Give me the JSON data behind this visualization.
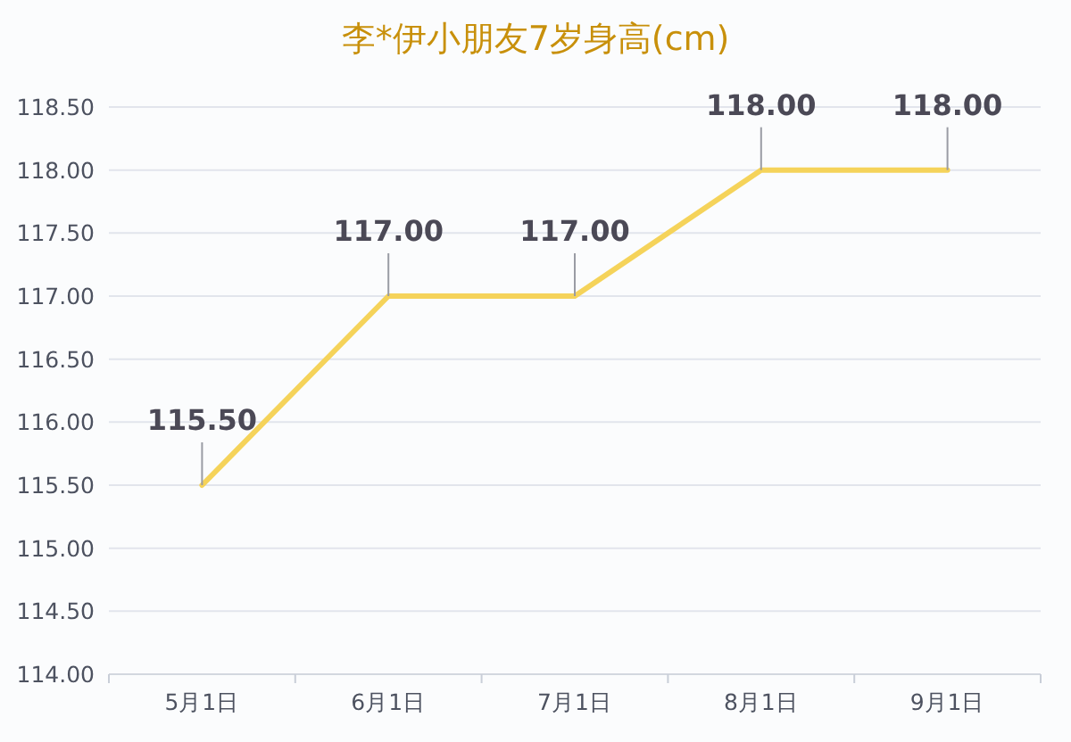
{
  "chart_data": {
    "type": "line",
    "title": "李*伊小朋友7岁身高(cm)",
    "categories": [
      "5月1日",
      "6月1日",
      "7月1日",
      "8月1日",
      "9月1日"
    ],
    "values": [
      115.5,
      117,
      117,
      118,
      118
    ],
    "value_labels": [
      "115.50",
      "117.00",
      "117.00",
      "118.00",
      "118.00"
    ],
    "color": "#f5d35a",
    "ylim": [
      114,
      118.5
    ],
    "yticks": [
      {
        "value": 114,
        "label": "114.00"
      },
      {
        "value": 114.5,
        "label": "114.50"
      },
      {
        "value": 115,
        "label": "115.00"
      },
      {
        "value": 115.5,
        "label": "115.50"
      },
      {
        "value": 116,
        "label": "116.00"
      },
      {
        "value": 116.5,
        "label": "116.50"
      },
      {
        "value": 117,
        "label": "117.00"
      },
      {
        "value": 117.5,
        "label": "117.50"
      },
      {
        "value": 118,
        "label": "118.00"
      },
      {
        "value": 118.5,
        "label": "118.50"
      }
    ],
    "grid": "y"
  }
}
